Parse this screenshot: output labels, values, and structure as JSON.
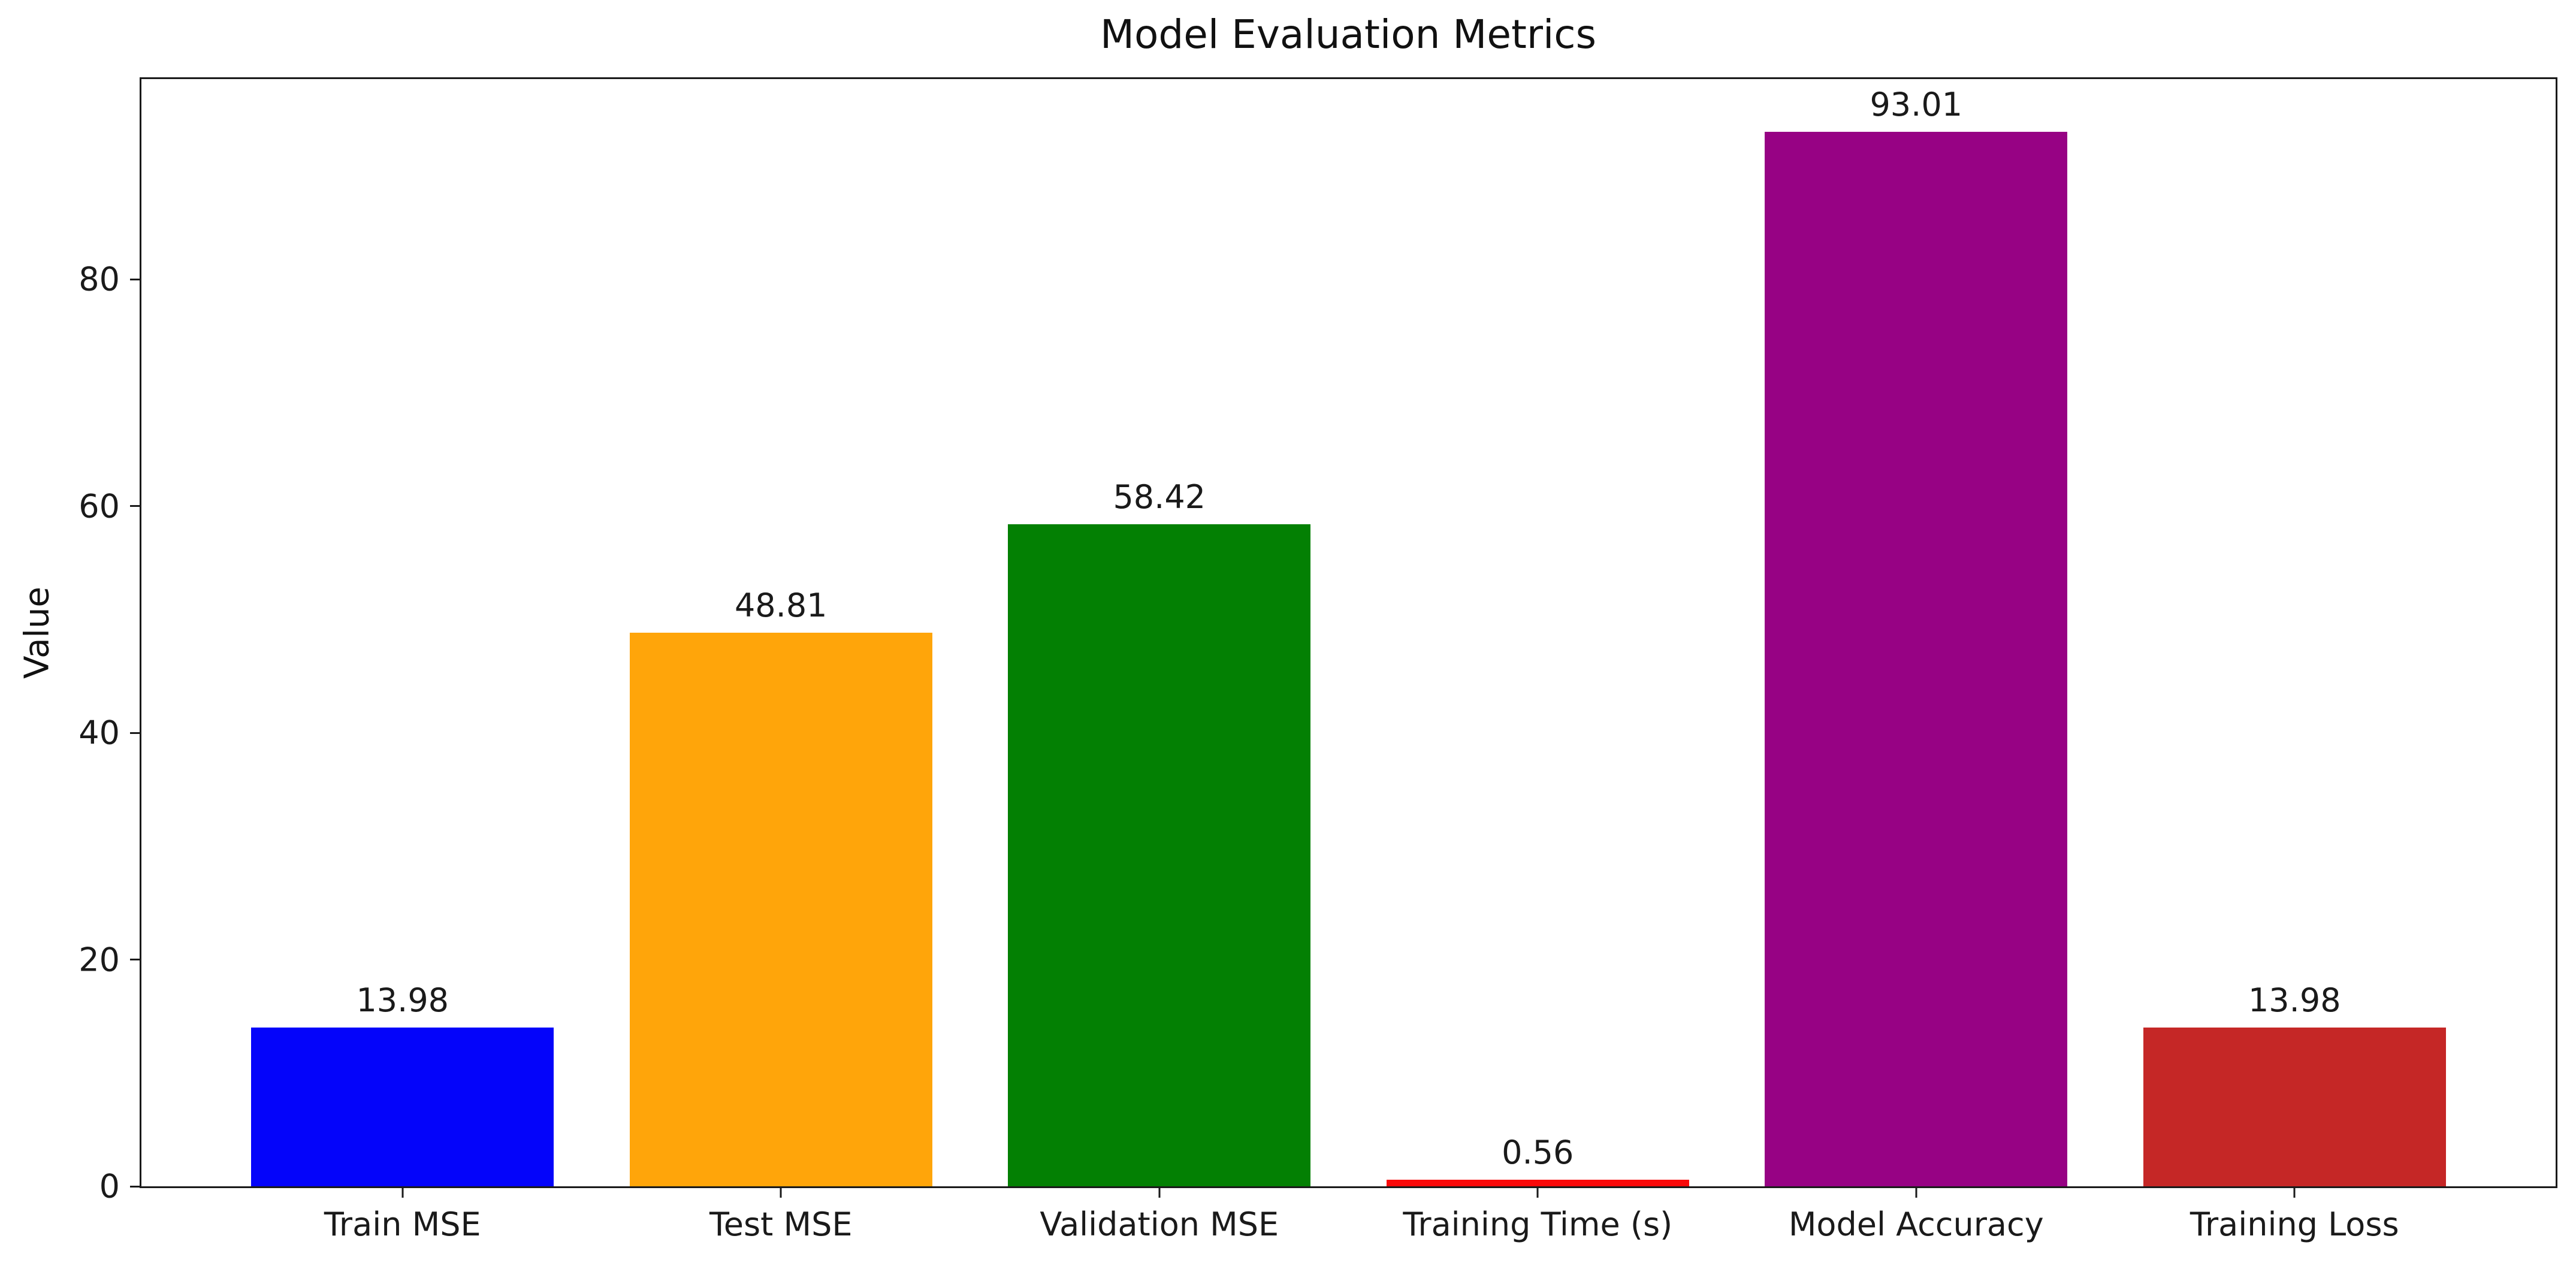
{
  "chart_data": {
    "type": "bar",
    "title": "Model Evaluation Metrics",
    "ylabel": "Value",
    "xlabel": "",
    "categories": [
      "Train MSE",
      "Test MSE",
      "Validation MSE",
      "Training Time (s)",
      "Model Accuracy",
      "Training Loss"
    ],
    "values": [
      13.98,
      48.81,
      58.42,
      0.56,
      93.01,
      13.98
    ],
    "value_labels": [
      "13.98",
      "48.81",
      "58.42",
      "0.56",
      "93.01",
      "13.98"
    ],
    "bar_colors": [
      "#0404fa",
      "#ffa50a",
      "#038003",
      "#fa0a0a",
      "#970284",
      "#c52726"
    ],
    "yticks": [
      0,
      20,
      40,
      60,
      80
    ],
    "ylim": [
      0,
      97.66
    ],
    "x_margin_units": 0.69,
    "x_span_units": 6.38,
    "bar_width_units": 0.8,
    "grid": false,
    "legend_position": "none",
    "background_color": "#ffffff",
    "axis_color": "#1a1a1a",
    "text_color": "#1a1a1a"
  }
}
